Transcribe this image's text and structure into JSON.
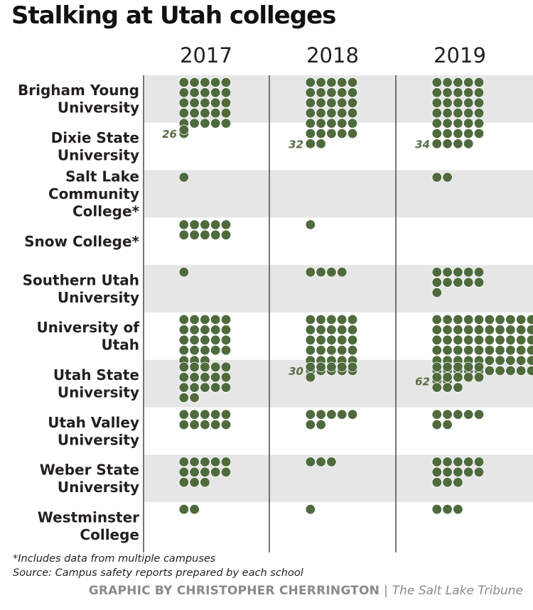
{
  "title": "Stalking at Utah colleges",
  "footnote": "*Includes data from multiple campuses",
  "source": "Source: Campus safety reports prepared by each school",
  "credit": {
    "byline": "GRAPHIC BY CHRISTOPHER CHERRINGTON",
    "separator": "|",
    "publication": "The Salt Lake Tribune"
  },
  "colors": {
    "dot": "#4f6b3e",
    "band": "#e6e6e6",
    "divider": "#555555",
    "label": "#5a6b45"
  },
  "chart_data": {
    "type": "table",
    "unit": "one dot = one reported stalking incident",
    "years": [
      "2017",
      "2018",
      "2019"
    ],
    "schools": [
      "Brigham Young University",
      "Dixie State University",
      "Salt Lake Community College*",
      "Snow College*",
      "Southern Utah University",
      "University of Utah",
      "Utah State University",
      "Utah Valley University",
      "Weber State University",
      "Westminster College"
    ],
    "values": [
      [
        26,
        32,
        34
      ],
      [
        1,
        0,
        0
      ],
      [
        1,
        0,
        2
      ],
      [
        10,
        1,
        0
      ],
      [
        1,
        4,
        11
      ],
      [
        23,
        30,
        62
      ],
      [
        17,
        6,
        13
      ],
      [
        10,
        7,
        7
      ],
      [
        13,
        3,
        13
      ],
      [
        2,
        1,
        3
      ]
    ],
    "count_labels": [
      [
        "26",
        "32",
        "34"
      ],
      [
        "",
        "",
        ""
      ],
      [
        "",
        "",
        ""
      ],
      [
        "",
        "",
        ""
      ],
      [
        "",
        "",
        ""
      ],
      [
        "",
        "30",
        "62"
      ],
      [
        "",
        "",
        ""
      ],
      [
        "",
        "",
        ""
      ],
      [
        "",
        "",
        ""
      ],
      [
        "",
        "",
        ""
      ]
    ]
  }
}
